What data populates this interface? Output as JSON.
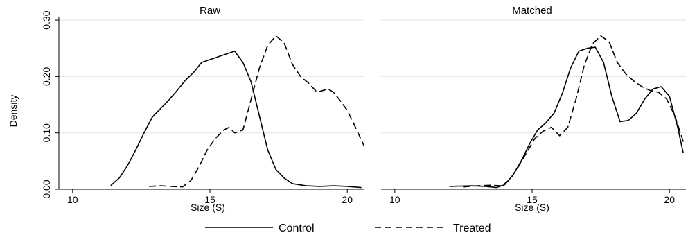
{
  "chart_data": {
    "type": "line",
    "ylabel": "Density",
    "xlabel": "Size (S)",
    "xlim": [
      9.5,
      20.6
    ],
    "ylim": [
      0,
      0.305
    ],
    "x_ticks": [
      10,
      15,
      20
    ],
    "y_ticks": [
      0.0,
      0.1,
      0.2,
      0.3
    ],
    "y_tick_labels": [
      "0.00",
      "0.10",
      "0.20",
      "0.30"
    ],
    "grid": true,
    "legend_position": "bottom",
    "legend": [
      {
        "name": "Control",
        "dash": "solid"
      },
      {
        "name": "Treated",
        "dash": "dashed"
      }
    ],
    "panels": [
      {
        "title": "Raw",
        "series": [
          {
            "name": "Control",
            "x": [
              11.4,
              11.7,
              12.0,
              12.3,
              12.6,
              12.9,
              13.2,
              13.5,
              13.8,
              14.1,
              14.4,
              14.7,
              15.0,
              15.3,
              15.6,
              15.9,
              16.2,
              16.5,
              16.8,
              17.1,
              17.4,
              17.7,
              18.0,
              18.5,
              19.0,
              19.5,
              20.0,
              20.5
            ],
            "y": [
              0.007,
              0.02,
              0.042,
              0.07,
              0.1,
              0.128,
              0.143,
              0.158,
              0.175,
              0.193,
              0.207,
              0.225,
              0.23,
              0.235,
              0.24,
              0.245,
              0.225,
              0.19,
              0.13,
              0.07,
              0.035,
              0.02,
              0.01,
              0.006,
              0.005,
              0.006,
              0.005,
              0.003
            ]
          },
          {
            "name": "Treated",
            "x": [
              12.8,
              13.2,
              13.6,
              14.0,
              14.3,
              14.6,
              14.9,
              15.2,
              15.5,
              15.7,
              15.9,
              16.2,
              16.5,
              16.8,
              17.1,
              17.4,
              17.7,
              18.0,
              18.3,
              18.6,
              18.9,
              19.1,
              19.3,
              19.5,
              19.7,
              20.0,
              20.3,
              20.6
            ],
            "y": [
              0.005,
              0.006,
              0.005,
              0.004,
              0.015,
              0.04,
              0.07,
              0.09,
              0.105,
              0.11,
              0.1,
              0.105,
              0.16,
              0.215,
              0.255,
              0.272,
              0.26,
              0.222,
              0.2,
              0.188,
              0.172,
              0.175,
              0.178,
              0.172,
              0.16,
              0.14,
              0.11,
              0.078
            ]
          }
        ]
      },
      {
        "title": "Matched",
        "series": [
          {
            "name": "Control",
            "x": [
              12.0,
              12.8,
              13.3,
              13.7,
              14.0,
              14.3,
              14.6,
              14.9,
              15.2,
              15.5,
              15.8,
              16.1,
              16.4,
              16.7,
              17.0,
              17.3,
              17.6,
              17.9,
              18.2,
              18.5,
              18.8,
              19.1,
              19.4,
              19.7,
              20.0,
              20.3,
              20.5
            ],
            "y": [
              0.005,
              0.006,
              0.005,
              0.003,
              0.008,
              0.025,
              0.05,
              0.08,
              0.105,
              0.118,
              0.135,
              0.17,
              0.215,
              0.245,
              0.25,
              0.252,
              0.225,
              0.165,
              0.12,
              0.122,
              0.135,
              0.16,
              0.178,
              0.182,
              0.165,
              0.11,
              0.065
            ]
          },
          {
            "name": "Treated",
            "x": [
              12.5,
              13.0,
              13.5,
              13.9,
              14.2,
              14.5,
              14.8,
              15.1,
              15.4,
              15.7,
              16.0,
              16.3,
              16.6,
              16.9,
              17.2,
              17.5,
              17.8,
              18.1,
              18.4,
              18.7,
              19.0,
              19.3,
              19.6,
              19.9,
              20.2,
              20.5
            ],
            "y": [
              0.004,
              0.006,
              0.007,
              0.006,
              0.018,
              0.04,
              0.065,
              0.09,
              0.103,
              0.11,
              0.095,
              0.11,
              0.16,
              0.22,
              0.258,
              0.272,
              0.262,
              0.225,
              0.205,
              0.192,
              0.182,
              0.175,
              0.172,
              0.16,
              0.13,
              0.085
            ]
          }
        ]
      }
    ]
  }
}
